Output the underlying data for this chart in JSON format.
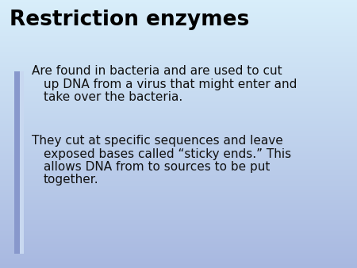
{
  "title": "Restriction enzymes",
  "bullet1_line1": "Are found in bacteria and are used to cut",
  "bullet1_line2": "up DNA from a virus that might enter and",
  "bullet1_line3": "take over the bacteria.",
  "bullet2_line1": "They cut at specific sequences and leave",
  "bullet2_line2": "exposed bases called “sticky ends.” This",
  "bullet2_line3": "allows DNA from to sources to be put",
  "bullet2_line4": "together.",
  "bg_color_top": "#d8eefa",
  "bg_color_bottom": "#a8b8e0",
  "title_color": "#000000",
  "body_color": "#111111",
  "title_fontsize": 19,
  "body_fontsize": 11,
  "bar1_color": "#8898cc",
  "bar2_color": "#c8d8f0"
}
